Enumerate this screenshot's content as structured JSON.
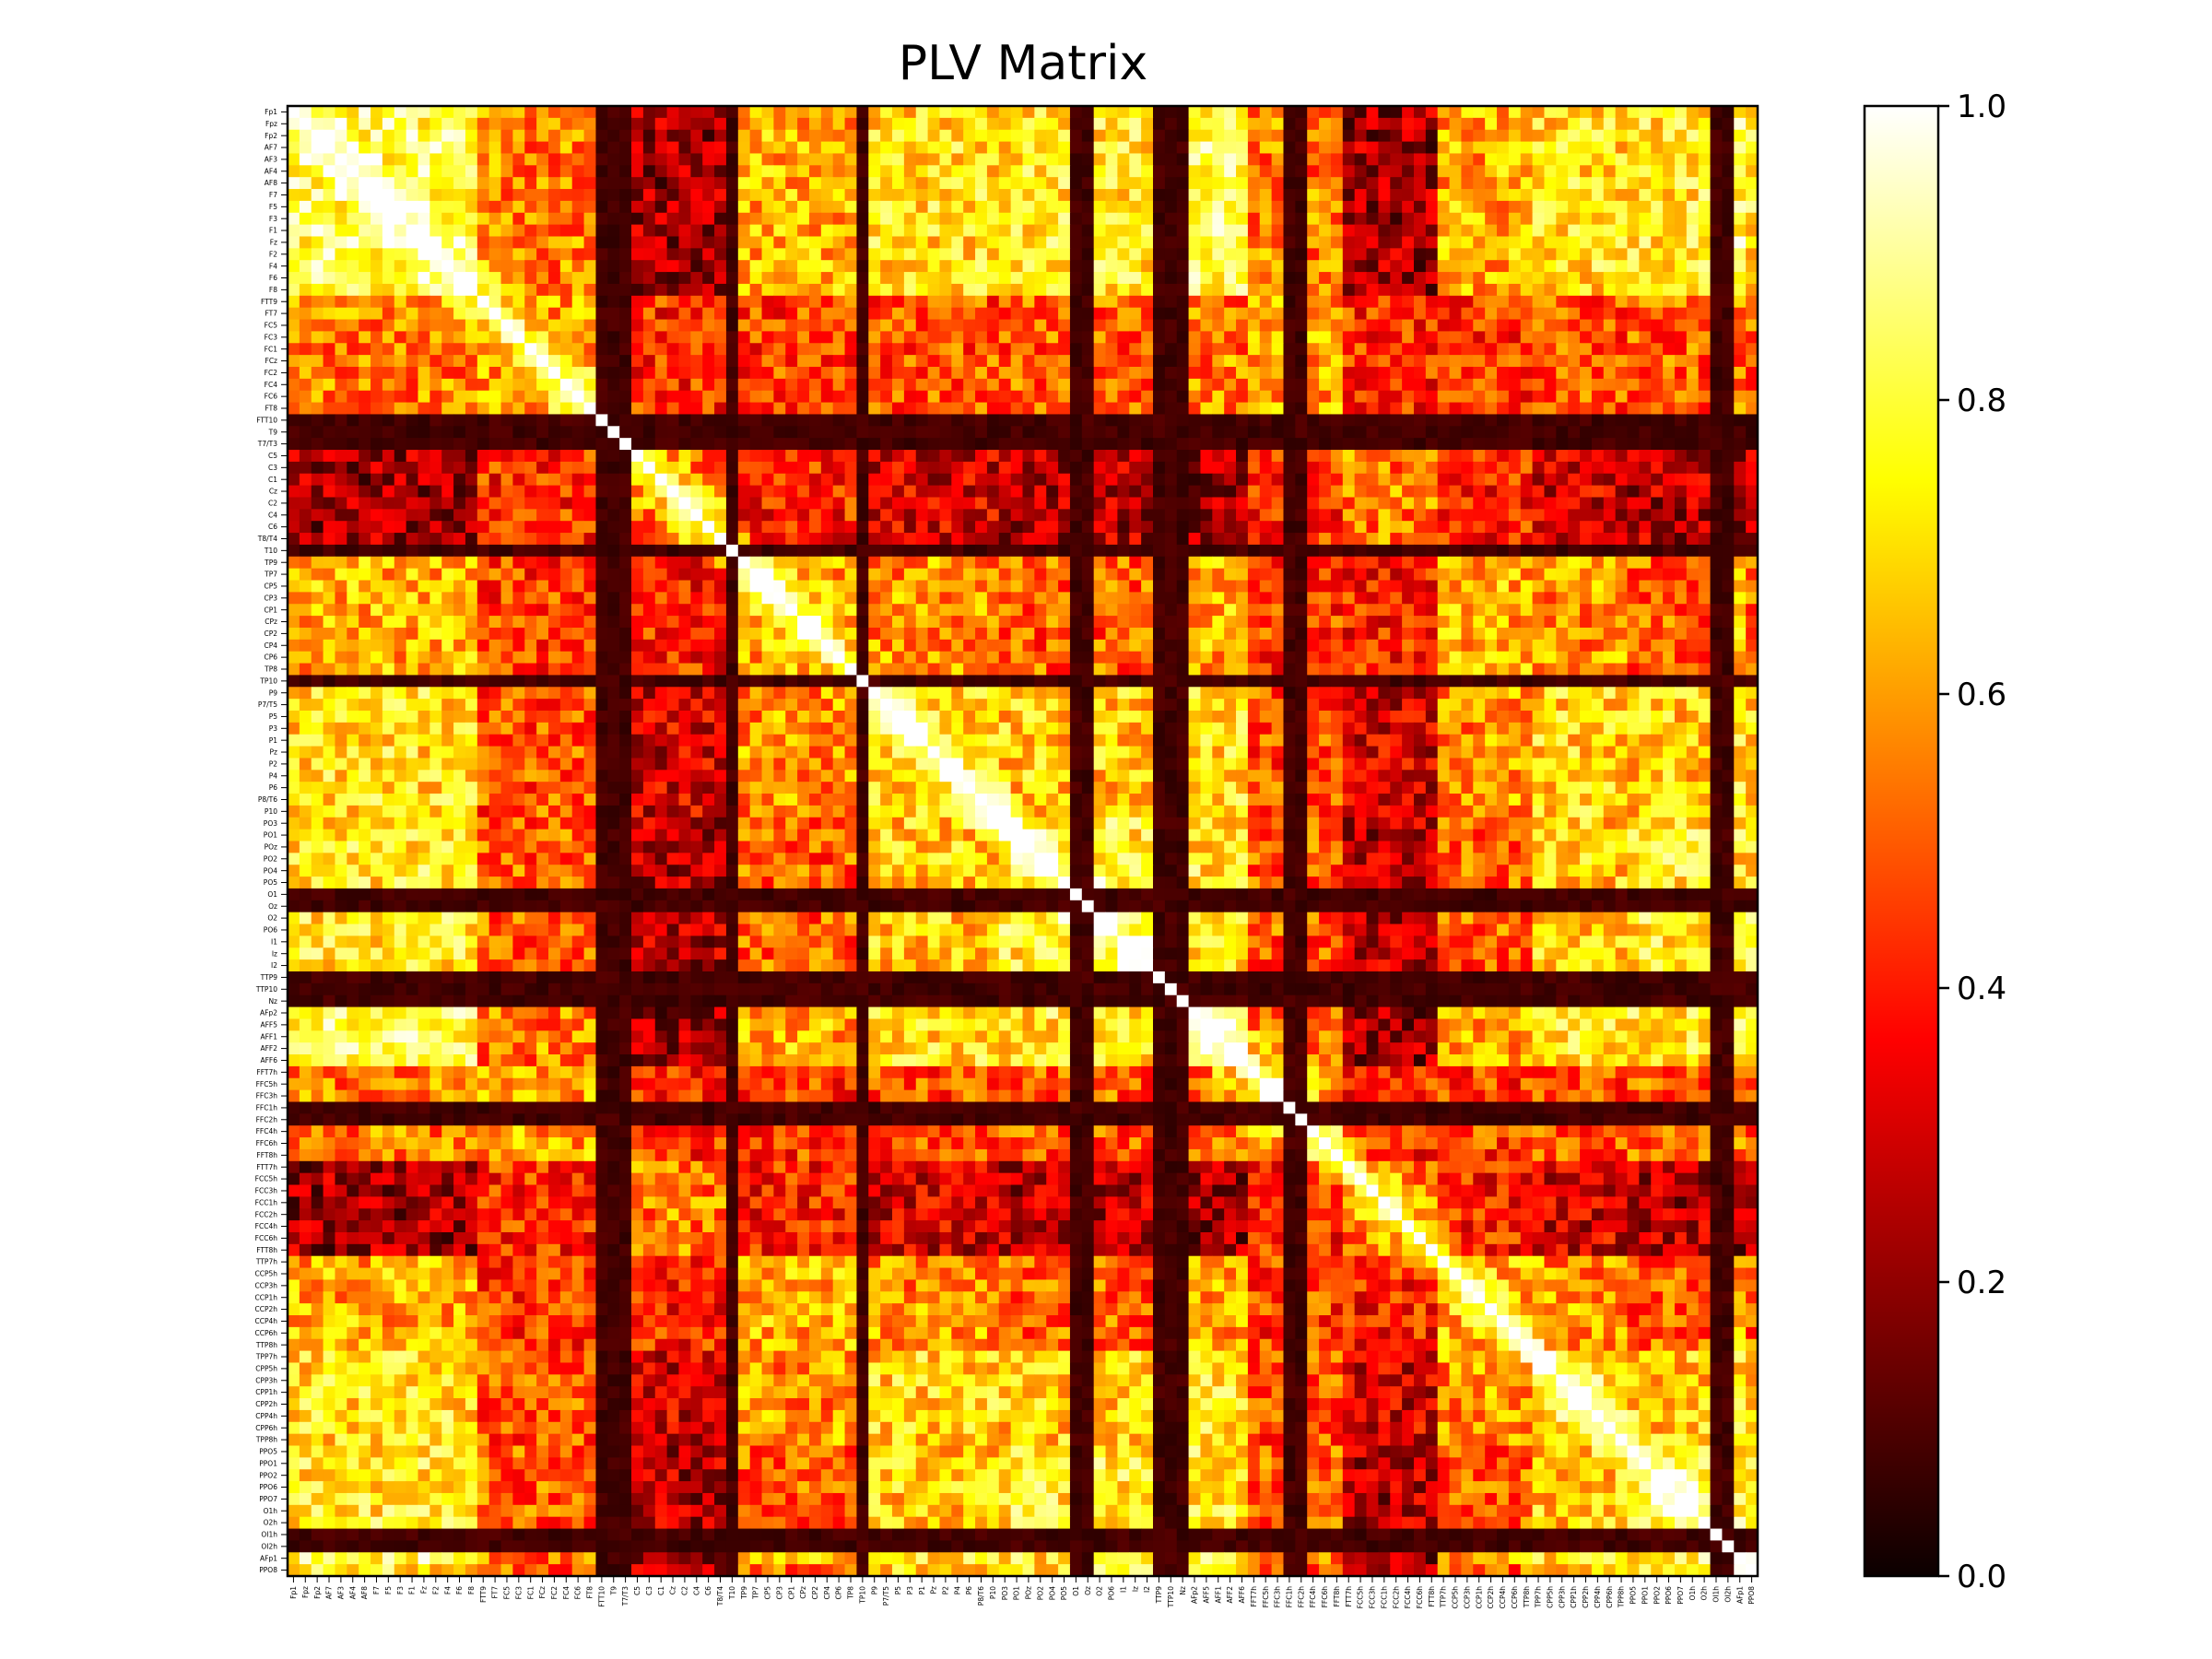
{
  "chart_data": {
    "type": "heatmap",
    "title": "PLV Matrix",
    "xlabel": "",
    "ylabel": "",
    "colormap": "hot",
    "colormap_stops": [
      "#0b0000",
      "#ff0000",
      "#ffff00",
      "#ffffff"
    ],
    "vmin": 0.0,
    "vmax": 1.0,
    "colorbar_ticks": [
      "0.0",
      "0.2",
      "0.4",
      "0.6",
      "0.8",
      "1.0"
    ],
    "labels": [
      "Fp1",
      "Fpz",
      "Fp2",
      "AF7",
      "AF3",
      "AF4",
      "AF8",
      "F7",
      "F5",
      "F3",
      "F1",
      "Fz",
      "F2",
      "F4",
      "F6",
      "F8",
      "FTT9",
      "FT7",
      "FC5",
      "FC3",
      "FC1",
      "FCz",
      "FC2",
      "FC4",
      "FC6",
      "FT8",
      "FTT10",
      "T9",
      "T7/T3",
      "C5",
      "C3",
      "C1",
      "Cz",
      "C2",
      "C4",
      "C6",
      "T8/T4",
      "T10",
      "TP9",
      "TP7",
      "CP5",
      "CP3",
      "CP1",
      "CPz",
      "CP2",
      "CP4",
      "CP6",
      "TP8",
      "TP10",
      "P9",
      "P7/T5",
      "P5",
      "P3",
      "P1",
      "Pz",
      "P2",
      "P4",
      "P6",
      "P8/T6",
      "P10",
      "PO3",
      "PO1",
      "POz",
      "PO2",
      "PO4",
      "PO5",
      "O1",
      "Oz",
      "O2",
      "PO6",
      "I1",
      "Iz",
      "I2",
      "TTP9",
      "TTP10",
      "Nz",
      "AFp2",
      "AFF5",
      "AFF1",
      "AFF2",
      "AFF6",
      "FFT7h",
      "FFC5h",
      "FFC3h",
      "FFC1h",
      "FFC2h",
      "FFC4h",
      "FFC6h",
      "FFT8h",
      "FTT7h",
      "FCC5h",
      "FCC3h",
      "FCC1h",
      "FCC2h",
      "FCC4h",
      "FCC6h",
      "FTT8h",
      "TTP7h",
      "CCP5h",
      "CCP3h",
      "CCP1h",
      "CCP2h",
      "CCP4h",
      "CCP6h",
      "TTP8h",
      "TPP7h",
      "CPP5h",
      "CPP3h",
      "CPP1h",
      "CPP2h",
      "CPP4h",
      "CPP6h",
      "TPP8h",
      "PPO5",
      "PPO1",
      "PPO2",
      "PPO6",
      "PPO7",
      "O1h",
      "O2h",
      "OI1h",
      "OI2h",
      "AFp1",
      "PPO8"
    ],
    "dark_channels": [
      "FTT10",
      "T9",
      "T7/T3",
      "T10",
      "TP10",
      "O1",
      "Oz",
      "TTP9",
      "TTP10",
      "Nz",
      "FFC1h",
      "FFC2h",
      "OI1h",
      "OI2h"
    ],
    "dark_column_channels": [
      "T9",
      "T7/T3",
      "TP10",
      "Oz",
      "TTP9",
      "TTP10",
      "Nz",
      "FFC2h",
      "OI2h"
    ],
    "block_groups": [
      [
        "Fp1",
        "Fpz",
        "Fp2",
        "AF7",
        "AF3",
        "AF4",
        "AF8",
        "F7",
        "F5",
        "F3",
        "F1",
        "Fz",
        "F2",
        "F4",
        "F6",
        "F8",
        "AFp2",
        "AFF5",
        "AFF1",
        "AFF2",
        "AFF6",
        "AFp1"
      ],
      [
        "FTT9",
        "FT7",
        "FC5",
        "FC3",
        "FC1",
        "FCz",
        "FC2",
        "FC4",
        "FC6",
        "FT8",
        "FFT7h",
        "FFC5h",
        "FFC3h",
        "FFC4h",
        "FFC6h",
        "FFT8h"
      ],
      [
        "C5",
        "C3",
        "C1",
        "Cz",
        "C2",
        "C4",
        "C6",
        "T8/T4",
        "FTT7h",
        "FCC5h",
        "FCC3h",
        "FCC1h",
        "FCC2h",
        "FCC4h",
        "FCC6h",
        "FTT8h"
      ],
      [
        "TP9",
        "TP7",
        "CP5",
        "CP3",
        "CP1",
        "CPz",
        "CP2",
        "CP4",
        "CP6",
        "TP8",
        "TTP7h",
        "CCP5h",
        "CCP3h",
        "CCP1h",
        "CCP2h",
        "CCP4h",
        "CCP6h",
        "TTP8h"
      ],
      [
        "P9",
        "P7/T5",
        "P5",
        "P3",
        "P1",
        "Pz",
        "P2",
        "P4",
        "P6",
        "P8/T6",
        "P10",
        "TPP7h",
        "CPP5h",
        "CPP3h",
        "CPP1h",
        "CPP2h",
        "CPP4h",
        "CPP6h",
        "TPP8h"
      ],
      [
        "PO3",
        "PO1",
        "POz",
        "PO2",
        "PO4",
        "PO5",
        "O2",
        "PO6",
        "I1",
        "Iz",
        "I2",
        "PPO5",
        "PPO1",
        "PPO2",
        "PPO6",
        "PPO7",
        "O1h",
        "O2h",
        "PPO8"
      ]
    ],
    "block_mean_plv": [
      [
        0.82,
        0.55,
        0.22,
        0.62,
        0.72,
        0.74
      ],
      [
        0.55,
        0.6,
        0.42,
        0.45,
        0.48,
        0.5
      ],
      [
        0.22,
        0.42,
        0.55,
        0.4,
        0.3,
        0.25
      ],
      [
        0.62,
        0.45,
        0.4,
        0.62,
        0.58,
        0.5
      ],
      [
        0.72,
        0.48,
        0.3,
        0.58,
        0.7,
        0.68
      ],
      [
        0.74,
        0.5,
        0.25,
        0.5,
        0.68,
        0.75
      ]
    ],
    "dark_channel_plv": 0.05,
    "diagonal_plv": 1.0,
    "grid": false
  }
}
